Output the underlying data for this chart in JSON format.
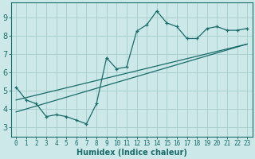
{
  "xlabel": "Humidex (Indice chaleur)",
  "bg_color": "#cce8e8",
  "grid_color": "#aad0d0",
  "line_color": "#1a6b6b",
  "spine_color": "#1a6b6b",
  "xlim": [
    -0.5,
    23.5
  ],
  "ylim": [
    2.5,
    9.8
  ],
  "xticks": [
    0,
    1,
    2,
    3,
    4,
    5,
    6,
    7,
    8,
    9,
    10,
    11,
    12,
    13,
    14,
    15,
    16,
    17,
    18,
    19,
    20,
    21,
    22,
    23
  ],
  "yticks": [
    3,
    4,
    5,
    6,
    7,
    8,
    9
  ],
  "data_x": [
    0,
    1,
    2,
    3,
    4,
    5,
    6,
    7,
    8,
    9,
    10,
    11,
    12,
    13,
    14,
    15,
    16,
    17,
    18,
    19,
    20,
    21,
    22,
    23
  ],
  "data_y": [
    5.2,
    4.5,
    4.3,
    3.6,
    3.7,
    3.6,
    3.4,
    3.2,
    4.3,
    6.8,
    6.2,
    6.3,
    8.25,
    8.6,
    9.35,
    8.7,
    8.5,
    7.85,
    7.85,
    8.4,
    8.5,
    8.3,
    8.3,
    8.4
  ],
  "trend1_x": [
    0,
    23
  ],
  "trend1_y": [
    4.5,
    7.55
  ],
  "trend2_x": [
    0,
    23
  ],
  "trend2_y": [
    3.85,
    7.55
  ],
  "xlabel_fontsize": 7,
  "tick_fontsize_x": 5.5,
  "tick_fontsize_y": 7
}
